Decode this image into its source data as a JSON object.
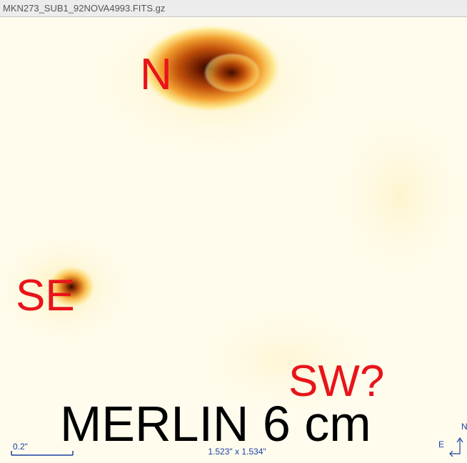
{
  "window": {
    "title": "MKN273_SUB1_92NOVA4993.FITS.gz"
  },
  "labels": {
    "north": "N",
    "southeast": "SE",
    "southwest": "SW?",
    "caption": "MERLIN 6 cm"
  },
  "footer": {
    "scale_bar": "0.2\"",
    "field_size": "1.523\" x 1.534\""
  },
  "compass": {
    "east": "E",
    "north": "N"
  }
}
